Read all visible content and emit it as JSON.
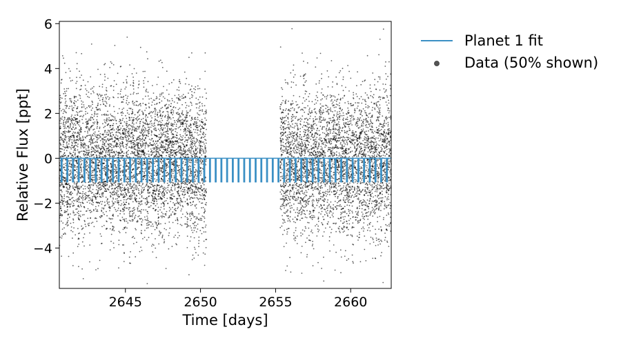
{
  "chart_data": {
    "type": "scatter",
    "title": "",
    "xlabel": "Time [days]",
    "ylabel": "Relative Flux [ppt]",
    "xlim": [
      2640.6,
      2662.7
    ],
    "ylim": [
      -5.8,
      6.1
    ],
    "xticks": [
      2645,
      2650,
      2655,
      2660
    ],
    "yticks": [
      -4,
      -2,
      0,
      2,
      4,
      6
    ],
    "xtick_labels": [
      "2645",
      "2650",
      "2655",
      "2660"
    ],
    "ytick_labels": [
      "−4",
      "−2",
      "0",
      "2",
      "4",
      "6"
    ],
    "grid": false,
    "legend_position": "outside-right-top",
    "colors": {
      "fit": "#3a8fc4",
      "data": "#000000"
    },
    "data_segments": [
      {
        "x_start": 2640.6,
        "x_end": 2650.4
      },
      {
        "x_start": 2655.3,
        "x_end": 2662.7
      }
    ],
    "data_scatter_std": 1.6,
    "data_points_per_segment": [
      5200,
      3900
    ],
    "transit": {
      "period_days": 0.38,
      "depth_ppt": 1.05,
      "duration_days": 0.055,
      "first_epoch": 2640.75
    },
    "series": [
      {
        "name": "Planet 1 fit",
        "kind": "line"
      },
      {
        "name": "Data (50% shown)",
        "kind": "scatter"
      }
    ]
  }
}
